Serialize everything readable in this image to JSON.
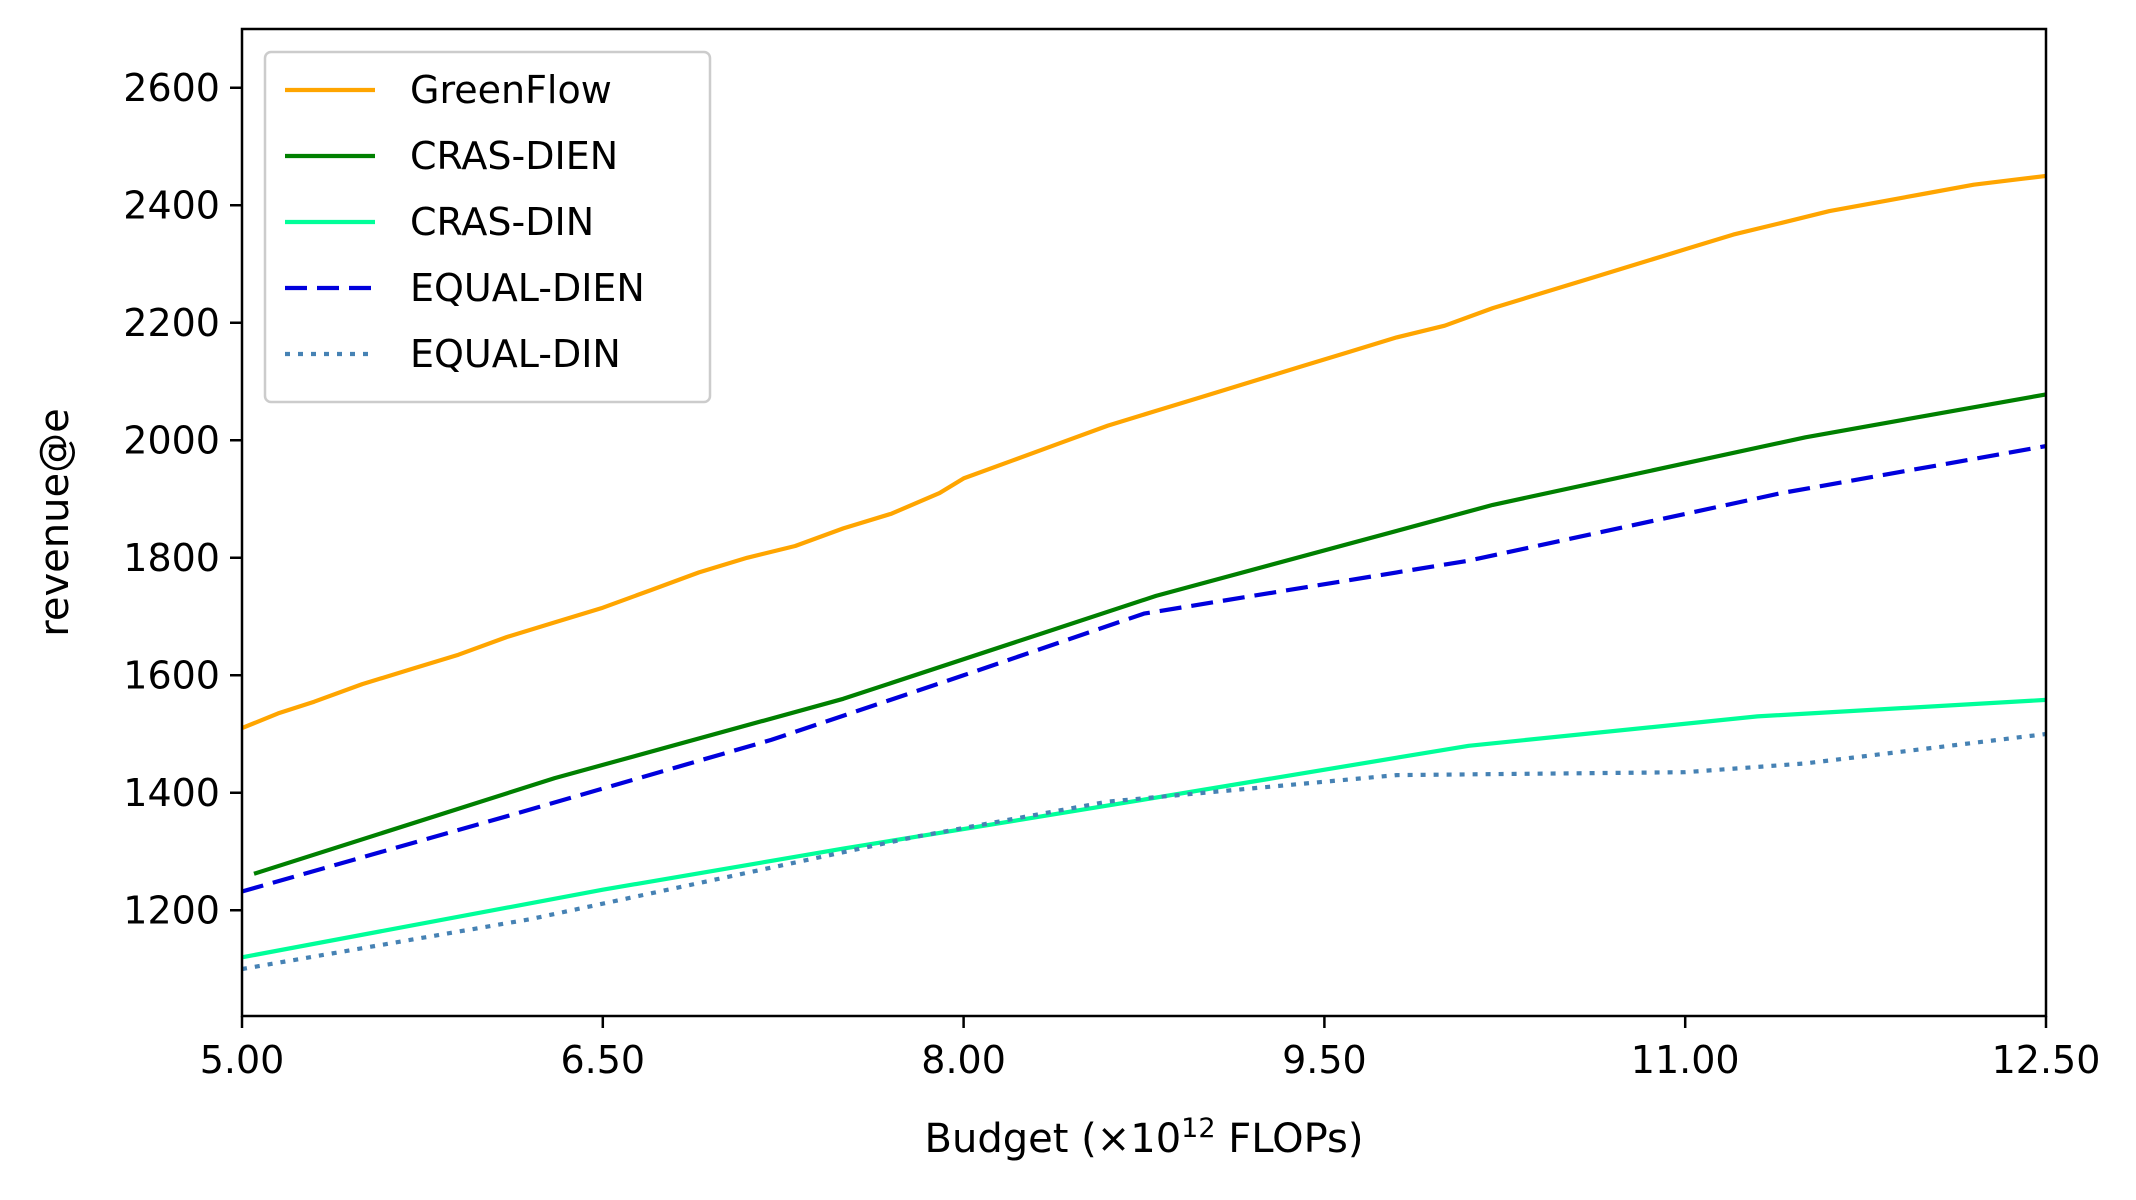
{
  "chart_data": {
    "type": "line",
    "title": "",
    "xlabel": "Budget (×10",
    "xlabel_exponent": "12",
    "xlabel_suffix": " FLOPs)",
    "ylabel": "revenue@e",
    "xlim": [
      5.0,
      12.5
    ],
    "ylim": [
      1020,
      2700
    ],
    "x_ticks": [
      5.0,
      6.5,
      8.0,
      9.5,
      11.0,
      12.5
    ],
    "x_tick_labels": [
      "5.00",
      "6.50",
      "8.00",
      "9.50",
      "11.00",
      "12.50"
    ],
    "y_ticks": [
      1200,
      1400,
      1600,
      1800,
      2000,
      2200,
      2400,
      2600
    ],
    "y_tick_labels": [
      "1200",
      "1400",
      "1600",
      "1800",
      "2000",
      "2200",
      "2400",
      "2600"
    ],
    "grid": false,
    "legend_position": "top-left",
    "series": [
      {
        "name": "GreenFlow",
        "color": "#FFA500",
        "style": "solid",
        "x": [
          5.0,
          5.15,
          5.3,
          5.5,
          5.7,
          5.9,
          6.1,
          6.3,
          6.5,
          6.7,
          6.9,
          7.1,
          7.3,
          7.5,
          7.7,
          7.9,
          8.0,
          8.2,
          8.4,
          8.6,
          8.8,
          9.0,
          9.2,
          9.4,
          9.6,
          9.8,
          10.0,
          10.2,
          10.4,
          10.6,
          10.8,
          11.0,
          11.2,
          11.4,
          11.6,
          11.8,
          12.0,
          12.2,
          12.4,
          12.5
        ],
        "y": [
          1510,
          1535,
          1555,
          1585,
          1610,
          1635,
          1665,
          1690,
          1715,
          1745,
          1775,
          1800,
          1820,
          1850,
          1875,
          1910,
          1935,
          1965,
          1995,
          2025,
          2050,
          2075,
          2100,
          2125,
          2150,
          2175,
          2195,
          2225,
          2250,
          2275,
          2300,
          2325,
          2350,
          2370,
          2390,
          2405,
          2420,
          2435,
          2445,
          2450
        ]
      },
      {
        "name": "CRAS-DIEN",
        "color": "#008000",
        "style": "solid",
        "x": [
          5.05,
          6.3,
          7.5,
          8.8,
          10.2,
          11.5,
          12.5
        ],
        "y": [
          1262,
          1425,
          1560,
          1735,
          1890,
          2005,
          2078
        ]
      },
      {
        "name": "CRAS-DIN",
        "color": "#00FF99",
        "style": "solid",
        "x": [
          5.0,
          6.5,
          7.5,
          8.7,
          10.1,
          11.3,
          12.5
        ],
        "y": [
          1120,
          1235,
          1305,
          1385,
          1480,
          1530,
          1558
        ]
      },
      {
        "name": "EQUAL-DIEN",
        "color": "#0000DD",
        "style": "dashed",
        "x": [
          5.0,
          6.1,
          7.2,
          8.0,
          8.75,
          10.1,
          11.4,
          12.5
        ],
        "y": [
          1232,
          1360,
          1490,
          1600,
          1705,
          1795,
          1910,
          1990
        ]
      },
      {
        "name": "EQUAL-DIN",
        "color": "#4682B4",
        "style": "dotted",
        "x": [
          5.0,
          6.2,
          7.0,
          7.8,
          8.6,
          9.8,
          11.0,
          11.5,
          12.5
        ],
        "y": [
          1100,
          1185,
          1255,
          1325,
          1385,
          1430,
          1435,
          1450,
          1500
        ]
      }
    ]
  }
}
